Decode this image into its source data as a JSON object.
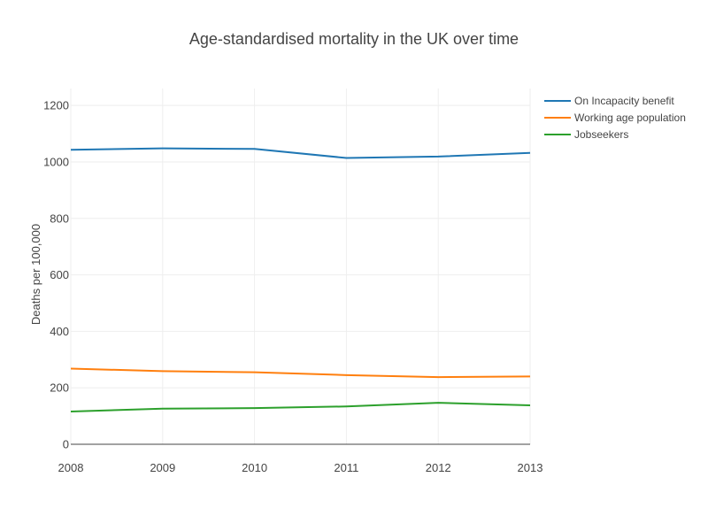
{
  "chart_data": {
    "type": "line",
    "title": "Age-standardised mortality in the UK over time",
    "xlabel": "",
    "ylabel": "Deaths per 100,000",
    "x": [
      2008,
      2009,
      2010,
      2011,
      2012,
      2013
    ],
    "xlim": [
      2008,
      2013
    ],
    "ylim": [
      0,
      1260
    ],
    "yticks": [
      0,
      200,
      400,
      600,
      800,
      1000,
      1200
    ],
    "grid": true,
    "legend_position": "top-right, outside plot",
    "series": [
      {
        "name": "On Incapacity benefit",
        "color": "#1f77b4",
        "values": [
          1043,
          1048,
          1046,
          1014,
          1019,
          1032
        ]
      },
      {
        "name": "Working age population",
        "color": "#ff7f0e",
        "values": [
          268,
          259,
          255,
          245,
          238,
          240
        ]
      },
      {
        "name": "Jobseekers",
        "color": "#2ca02c",
        "values": [
          116,
          126,
          128,
          134,
          147,
          138
        ]
      }
    ]
  }
}
